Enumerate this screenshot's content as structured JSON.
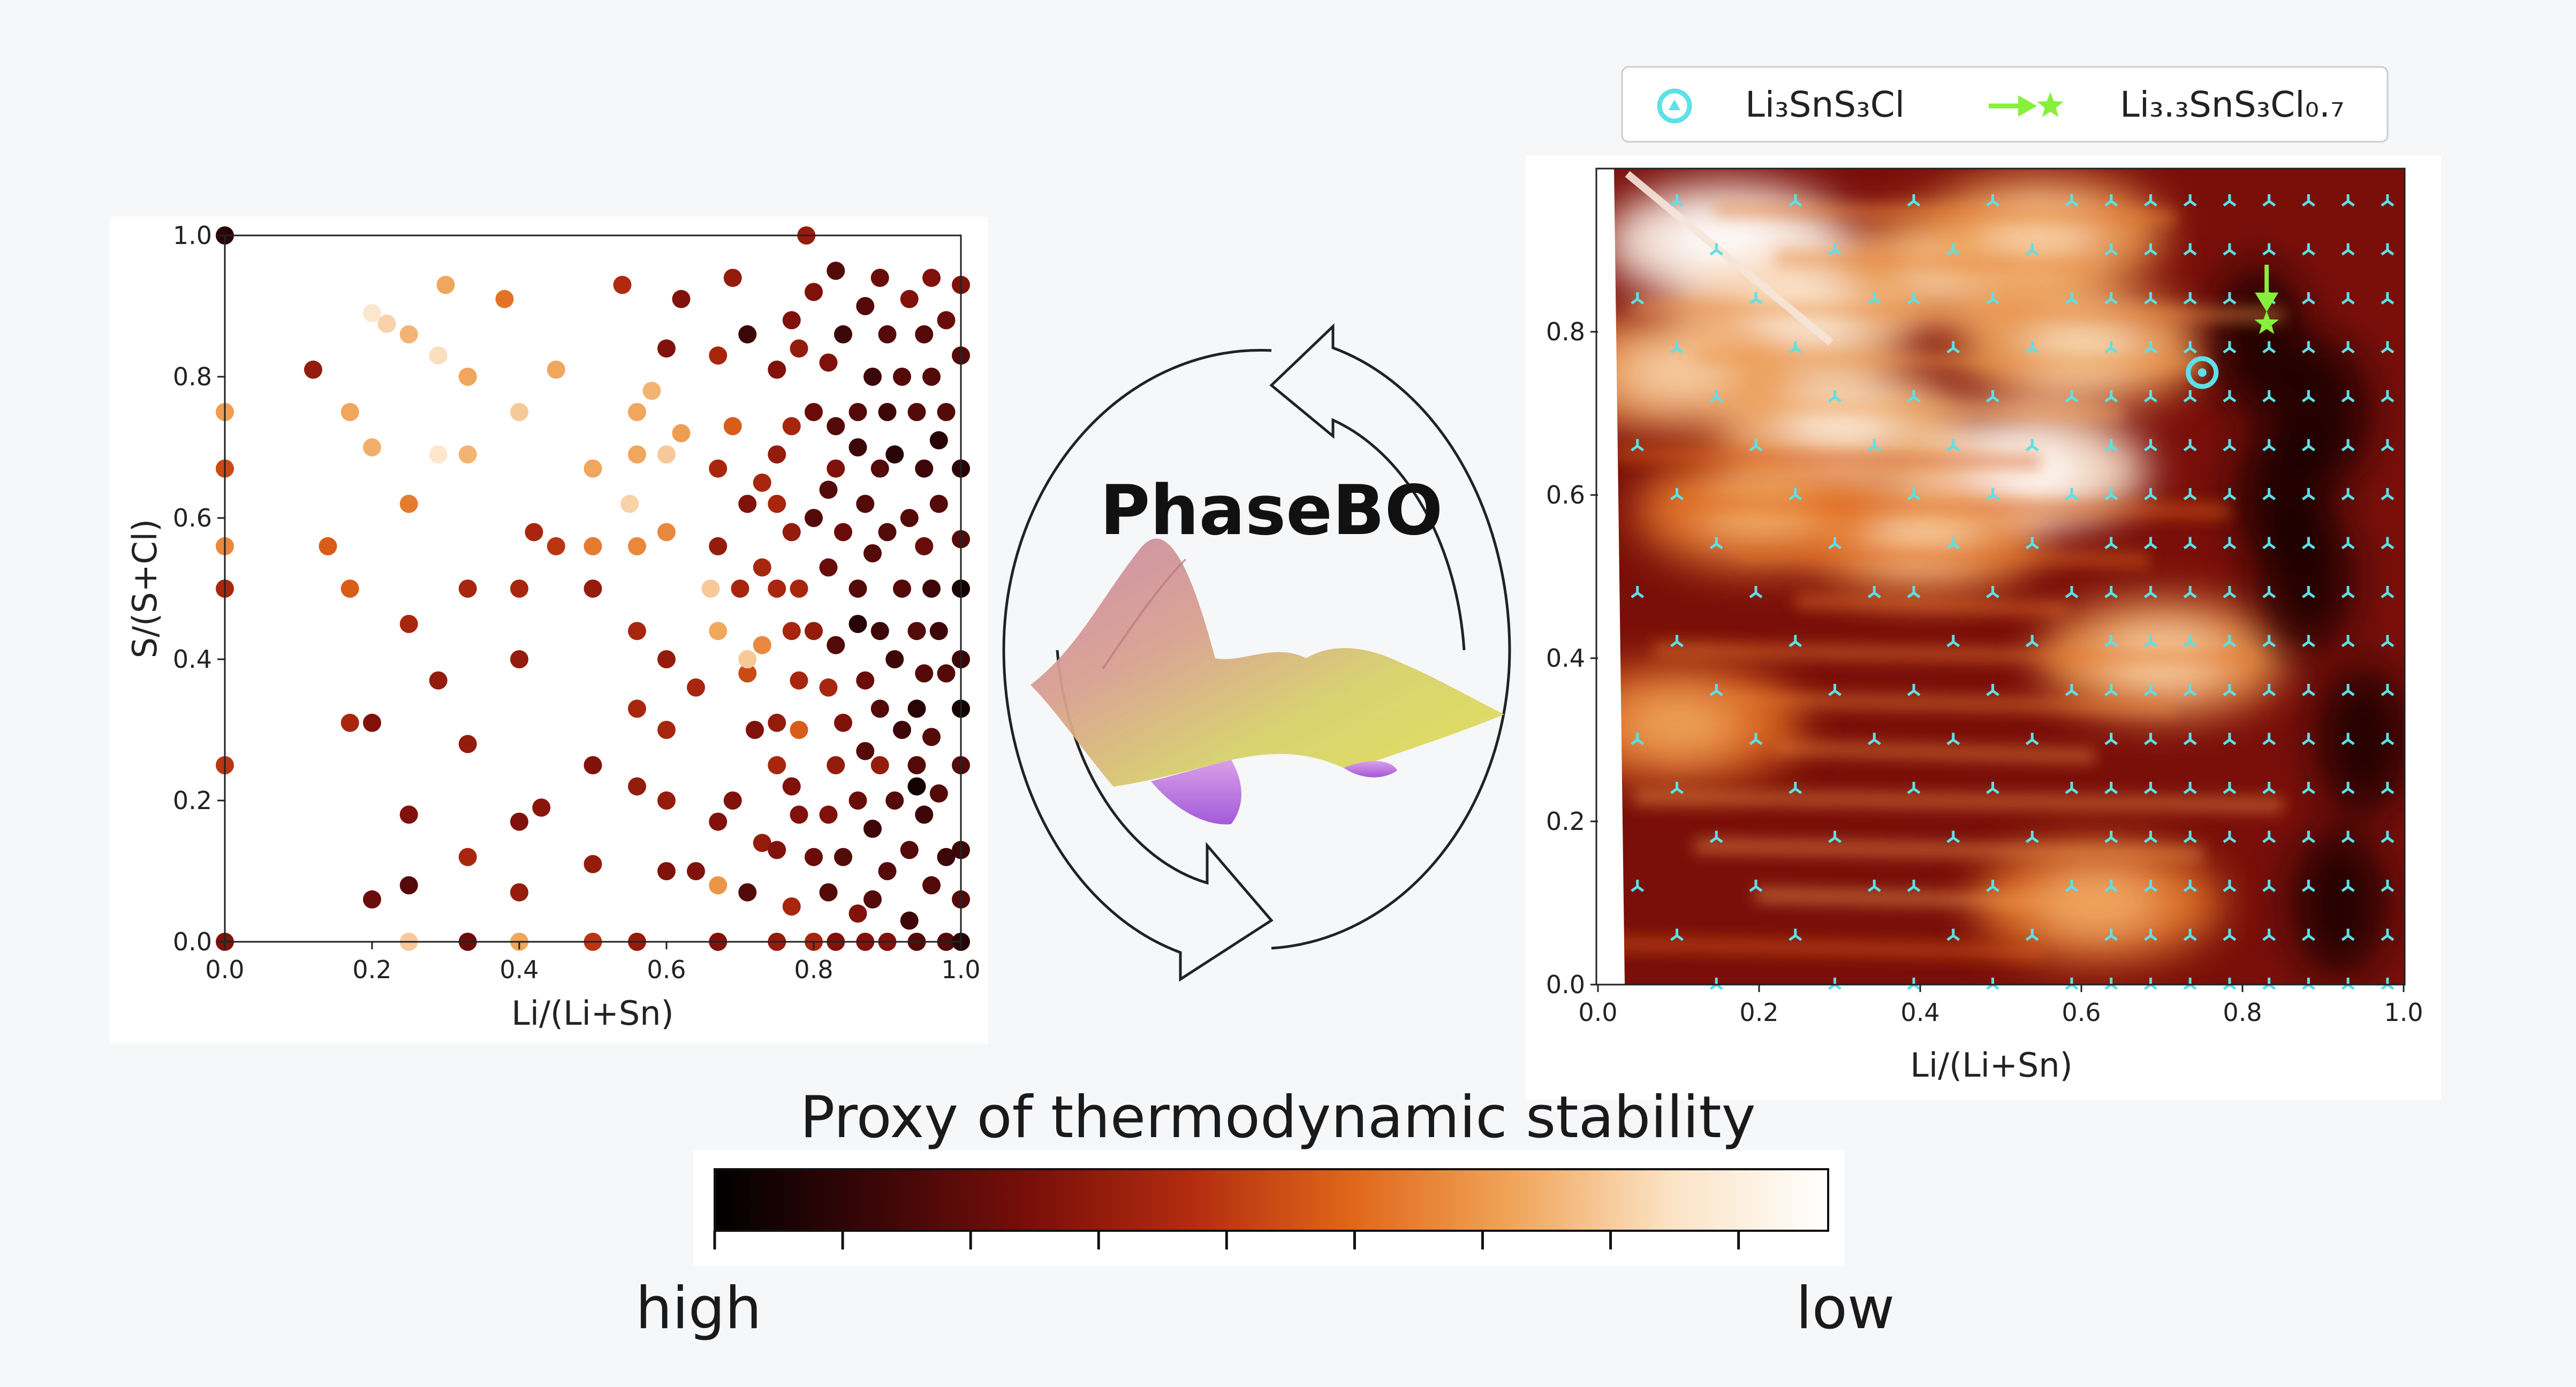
{
  "title": "PhaseBO",
  "colorbar": {
    "title": "Proxy of thermodynamic stability",
    "low_label": "low",
    "high_label": "high",
    "colors": [
      "#000000",
      "#3a0608",
      "#7a0f0a",
      "#b32c0f",
      "#e0661a",
      "#f0a458",
      "#fbe2c4",
      "#ffffff"
    ]
  },
  "colors": {
    "marker": "#5de0e6",
    "target": "#86f03c",
    "background": "#f6f7f9"
  },
  "chart_data": [
    {
      "type": "scatter",
      "title": "",
      "xlabel": "Li/(Li+Sn)",
      "ylabel": "S/(S+Cl)",
      "xlim": [
        0,
        1
      ],
      "ylim": [
        0,
        1
      ],
      "xticks": [
        "0.0",
        "0.2",
        "0.4",
        "0.6",
        "0.8",
        "1.0"
      ],
      "yticks": [
        "0.0",
        "0.2",
        "0.4",
        "0.6",
        "0.8",
        "1.0"
      ],
      "grid": false,
      "points": [
        [
          0.0,
          1.0,
          0.1
        ],
        [
          0.0,
          0.75,
          0.7
        ],
        [
          0.0,
          0.67,
          0.5
        ],
        [
          0.0,
          0.56,
          0.65
        ],
        [
          0.0,
          0.5,
          0.4
        ],
        [
          0.0,
          0.25,
          0.45
        ],
        [
          0.0,
          0.0,
          0.3
        ],
        [
          0.12,
          0.81,
          0.35
        ],
        [
          0.14,
          0.56,
          0.55
        ],
        [
          0.17,
          0.5,
          0.55
        ],
        [
          0.17,
          0.31,
          0.4
        ],
        [
          0.17,
          0.75,
          0.72
        ],
        [
          0.2,
          0.89,
          0.88
        ],
        [
          0.22,
          0.875,
          0.82
        ],
        [
          0.2,
          0.7,
          0.74
        ],
        [
          0.2,
          0.31,
          0.3
        ],
        [
          0.2,
          0.06,
          0.25
        ],
        [
          0.25,
          0.86,
          0.75
        ],
        [
          0.25,
          0.62,
          0.62
        ],
        [
          0.25,
          0.45,
          0.4
        ],
        [
          0.25,
          0.18,
          0.3
        ],
        [
          0.25,
          0.08,
          0.2
        ],
        [
          0.25,
          0.0,
          0.8
        ],
        [
          0.29,
          0.83,
          0.85
        ],
        [
          0.29,
          0.69,
          0.88
        ],
        [
          0.29,
          0.37,
          0.35
        ],
        [
          0.3,
          0.93,
          0.72
        ],
        [
          0.33,
          0.8,
          0.72
        ],
        [
          0.33,
          0.69,
          0.75
        ],
        [
          0.33,
          0.5,
          0.4
        ],
        [
          0.33,
          0.28,
          0.35
        ],
        [
          0.33,
          0.12,
          0.4
        ],
        [
          0.33,
          0.0,
          0.25
        ],
        [
          0.38,
          0.91,
          0.6
        ],
        [
          0.4,
          0.75,
          0.8
        ],
        [
          0.4,
          0.5,
          0.4
        ],
        [
          0.4,
          0.4,
          0.35
        ],
        [
          0.4,
          0.17,
          0.3
        ],
        [
          0.4,
          0.07,
          0.35
        ],
        [
          0.4,
          0.0,
          0.72
        ],
        [
          0.42,
          0.58,
          0.4
        ],
        [
          0.43,
          0.19,
          0.32
        ],
        [
          0.45,
          0.81,
          0.72
        ],
        [
          0.45,
          0.56,
          0.45
        ],
        [
          0.5,
          0.67,
          0.72
        ],
        [
          0.5,
          0.5,
          0.35
        ],
        [
          0.5,
          0.25,
          0.3
        ],
        [
          0.5,
          0.11,
          0.35
        ],
        [
          0.5,
          0.56,
          0.62
        ],
        [
          0.5,
          0.0,
          0.45
        ],
        [
          0.54,
          0.93,
          0.42
        ],
        [
          0.55,
          0.62,
          0.82
        ],
        [
          0.56,
          0.75,
          0.72
        ],
        [
          0.56,
          0.69,
          0.72
        ],
        [
          0.56,
          0.56,
          0.65
        ],
        [
          0.56,
          0.44,
          0.4
        ],
        [
          0.56,
          0.33,
          0.4
        ],
        [
          0.56,
          0.22,
          0.35
        ],
        [
          0.56,
          0.0,
          0.35
        ],
        [
          0.58,
          0.78,
          0.75
        ],
        [
          0.6,
          0.69,
          0.8
        ],
        [
          0.6,
          0.4,
          0.35
        ],
        [
          0.6,
          0.3,
          0.4
        ],
        [
          0.6,
          0.2,
          0.35
        ],
        [
          0.6,
          0.1,
          0.3
        ],
        [
          0.6,
          0.58,
          0.65
        ],
        [
          0.6,
          0.84,
          0.3
        ],
        [
          0.62,
          0.91,
          0.3
        ],
        [
          0.62,
          0.72,
          0.7
        ],
        [
          0.64,
          0.36,
          0.4
        ],
        [
          0.64,
          0.1,
          0.3
        ],
        [
          0.66,
          0.5,
          0.8
        ],
        [
          0.67,
          0.44,
          0.72
        ],
        [
          0.67,
          0.67,
          0.4
        ],
        [
          0.67,
          0.83,
          0.4
        ],
        [
          0.67,
          0.56,
          0.35
        ],
        [
          0.67,
          0.17,
          0.3
        ],
        [
          0.67,
          0.08,
          0.68
        ],
        [
          0.67,
          0.0,
          0.3
        ],
        [
          0.69,
          0.94,
          0.35
        ],
        [
          0.69,
          0.73,
          0.55
        ],
        [
          0.69,
          0.2,
          0.3
        ],
        [
          0.7,
          0.5,
          0.4
        ],
        [
          0.71,
          0.86,
          0.15
        ],
        [
          0.71,
          0.62,
          0.3
        ],
        [
          0.71,
          0.38,
          0.5
        ],
        [
          0.71,
          0.07,
          0.2
        ],
        [
          0.71,
          0.4,
          0.8
        ],
        [
          0.72,
          0.3,
          0.3
        ],
        [
          0.73,
          0.65,
          0.4
        ],
        [
          0.73,
          0.53,
          0.4
        ],
        [
          0.73,
          0.42,
          0.65
        ],
        [
          0.73,
          0.14,
          0.35
        ],
        [
          0.75,
          0.81,
          0.3
        ],
        [
          0.75,
          0.69,
          0.35
        ],
        [
          0.75,
          0.62,
          0.4
        ],
        [
          0.75,
          0.5,
          0.4
        ],
        [
          0.75,
          0.31,
          0.35
        ],
        [
          0.75,
          0.25,
          0.4
        ],
        [
          0.75,
          0.13,
          0.3
        ],
        [
          0.75,
          0.0,
          0.35
        ],
        [
          0.77,
          0.88,
          0.3
        ],
        [
          0.77,
          0.73,
          0.4
        ],
        [
          0.77,
          0.58,
          0.35
        ],
        [
          0.77,
          0.44,
          0.4
        ],
        [
          0.77,
          0.22,
          0.3
        ],
        [
          0.77,
          0.05,
          0.4
        ],
        [
          0.78,
          0.84,
          0.35
        ],
        [
          0.78,
          0.5,
          0.4
        ],
        [
          0.78,
          0.37,
          0.4
        ],
        [
          0.78,
          0.18,
          0.3
        ],
        [
          0.78,
          0.3,
          0.55
        ],
        [
          0.79,
          1.0,
          0.35
        ],
        [
          0.8,
          0.92,
          0.3
        ],
        [
          0.8,
          0.75,
          0.25
        ],
        [
          0.8,
          0.6,
          0.2
        ],
        [
          0.8,
          0.44,
          0.35
        ],
        [
          0.8,
          0.12,
          0.25
        ],
        [
          0.8,
          0.0,
          0.4
        ],
        [
          0.82,
          0.82,
          0.3
        ],
        [
          0.82,
          0.53,
          0.25
        ],
        [
          0.82,
          0.36,
          0.4
        ],
        [
          0.82,
          0.18,
          0.3
        ],
        [
          0.82,
          0.07,
          0.2
        ],
        [
          0.82,
          0.64,
          0.2
        ],
        [
          0.83,
          0.95,
          0.2
        ],
        [
          0.83,
          0.73,
          0.2
        ],
        [
          0.83,
          0.67,
          0.3
        ],
        [
          0.83,
          0.42,
          0.2
        ],
        [
          0.83,
          0.25,
          0.35
        ],
        [
          0.83,
          0.0,
          0.3
        ],
        [
          0.84,
          0.86,
          0.15
        ],
        [
          0.84,
          0.58,
          0.25
        ],
        [
          0.84,
          0.31,
          0.3
        ],
        [
          0.84,
          0.12,
          0.2
        ],
        [
          0.86,
          0.75,
          0.2
        ],
        [
          0.86,
          0.7,
          0.15
        ],
        [
          0.86,
          0.5,
          0.2
        ],
        [
          0.86,
          0.45,
          0.1
        ],
        [
          0.86,
          0.2,
          0.25
        ],
        [
          0.86,
          0.04,
          0.3
        ],
        [
          0.87,
          0.9,
          0.2
        ],
        [
          0.87,
          0.62,
          0.2
        ],
        [
          0.87,
          0.37,
          0.25
        ],
        [
          0.87,
          0.27,
          0.2
        ],
        [
          0.87,
          0.0,
          0.3
        ],
        [
          0.88,
          0.8,
          0.15
        ],
        [
          0.88,
          0.55,
          0.2
        ],
        [
          0.88,
          0.16,
          0.15
        ],
        [
          0.88,
          0.06,
          0.2
        ],
        [
          0.89,
          0.94,
          0.25
        ],
        [
          0.89,
          0.67,
          0.2
        ],
        [
          0.89,
          0.44,
          0.15
        ],
        [
          0.89,
          0.33,
          0.2
        ],
        [
          0.89,
          0.25,
          0.35
        ],
        [
          0.9,
          0.86,
          0.2
        ],
        [
          0.9,
          0.75,
          0.15
        ],
        [
          0.9,
          0.58,
          0.2
        ],
        [
          0.9,
          0.1,
          0.2
        ],
        [
          0.9,
          0.0,
          0.3
        ],
        [
          0.91,
          0.69,
          0.1
        ],
        [
          0.91,
          0.4,
          0.15
        ],
        [
          0.91,
          0.2,
          0.2
        ],
        [
          0.92,
          0.8,
          0.2
        ],
        [
          0.92,
          0.5,
          0.2
        ],
        [
          0.92,
          0.3,
          0.15
        ],
        [
          0.93,
          0.91,
          0.3
        ],
        [
          0.93,
          0.6,
          0.2
        ],
        [
          0.93,
          0.13,
          0.2
        ],
        [
          0.93,
          0.03,
          0.15
        ],
        [
          0.94,
          0.75,
          0.2
        ],
        [
          0.94,
          0.44,
          0.2
        ],
        [
          0.94,
          0.33,
          0.1
        ],
        [
          0.94,
          0.25,
          0.2
        ],
        [
          0.94,
          0.22,
          0.05
        ],
        [
          0.94,
          0.0,
          0.2
        ],
        [
          0.95,
          0.86,
          0.2
        ],
        [
          0.95,
          0.67,
          0.15
        ],
        [
          0.95,
          0.56,
          0.25
        ],
        [
          0.95,
          0.38,
          0.2
        ],
        [
          0.95,
          0.18,
          0.15
        ],
        [
          0.96,
          0.94,
          0.3
        ],
        [
          0.96,
          0.8,
          0.2
        ],
        [
          0.96,
          0.5,
          0.15
        ],
        [
          0.96,
          0.29,
          0.2
        ],
        [
          0.96,
          0.08,
          0.2
        ],
        [
          0.97,
          0.71,
          0.1
        ],
        [
          0.97,
          0.62,
          0.2
        ],
        [
          0.97,
          0.44,
          0.15
        ],
        [
          0.97,
          0.21,
          0.2
        ],
        [
          0.98,
          0.88,
          0.25
        ],
        [
          0.98,
          0.75,
          0.2
        ],
        [
          0.98,
          0.38,
          0.2
        ],
        [
          0.98,
          0.12,
          0.15
        ],
        [
          0.98,
          0.0,
          0.2
        ],
        [
          1.0,
          0.93,
          0.3
        ],
        [
          1.0,
          0.83,
          0.2
        ],
        [
          1.0,
          0.67,
          0.1
        ],
        [
          1.0,
          0.57,
          0.2
        ],
        [
          1.0,
          0.5,
          0.05
        ],
        [
          1.0,
          0.4,
          0.15
        ],
        [
          1.0,
          0.33,
          0.05
        ],
        [
          1.0,
          0.25,
          0.2
        ],
        [
          1.0,
          0.13,
          0.15
        ],
        [
          1.0,
          0.06,
          0.2
        ],
        [
          1.0,
          0.0,
          0.1
        ]
      ]
    },
    {
      "type": "heatmap",
      "title": "",
      "xlabel": "Li/(Li+Sn)",
      "ylabel": "",
      "xlim": [
        0,
        1
      ],
      "ylim": [
        0,
        1
      ],
      "xticks": [
        "0.0",
        "0.2",
        "0.4",
        "0.6",
        "0.8",
        "1.0"
      ],
      "yticks": [
        "0.0",
        "0.2",
        "0.4",
        "0.6",
        "0.8"
      ],
      "grid": false,
      "legend_position": "top",
      "legend": [
        {
          "marker": "circle",
          "label": "Li₃SnS₃Cl"
        },
        {
          "marker": "arrow-star",
          "label": "Li₃.₃SnS₃Cl₀.₇"
        }
      ],
      "annotations": [
        {
          "marker": "circle",
          "x": 0.75,
          "y": 0.75
        },
        {
          "marker": "arrow-star",
          "x": 0.83,
          "y": 0.81
        }
      ],
      "hotspots": [
        {
          "x": 0.16,
          "y": 0.91,
          "value": 0.95
        },
        {
          "x": 0.25,
          "y": 0.82,
          "value": 0.8
        },
        {
          "x": 0.53,
          "y": 0.63,
          "value": 0.88
        },
        {
          "x": 0.6,
          "y": 0.78,
          "value": 0.72
        },
        {
          "x": 0.3,
          "y": 0.69,
          "value": 0.78
        },
        {
          "x": 0.1,
          "y": 0.75,
          "value": 0.7
        },
        {
          "x": 0.45,
          "y": 0.88,
          "value": 0.72
        },
        {
          "x": 0.7,
          "y": 0.4,
          "value": 0.7
        },
        {
          "x": 0.4,
          "y": 0.55,
          "value": 0.68
        },
        {
          "x": 0.62,
          "y": 0.1,
          "value": 0.62
        },
        {
          "x": 0.1,
          "y": 0.32,
          "value": 0.6
        },
        {
          "x": 0.2,
          "y": 0.58,
          "value": 0.62
        },
        {
          "x": 0.55,
          "y": 0.92,
          "value": 0.7
        }
      ],
      "darkspots": [
        {
          "x": 0.82,
          "y": 0.79
        },
        {
          "x": 0.88,
          "y": 0.5
        },
        {
          "x": 0.9,
          "y": 0.7
        },
        {
          "x": 0.92,
          "y": 0.1
        },
        {
          "x": 0.95,
          "y": 0.3
        },
        {
          "x": 0.85,
          "y": 0.6
        }
      ]
    }
  ]
}
